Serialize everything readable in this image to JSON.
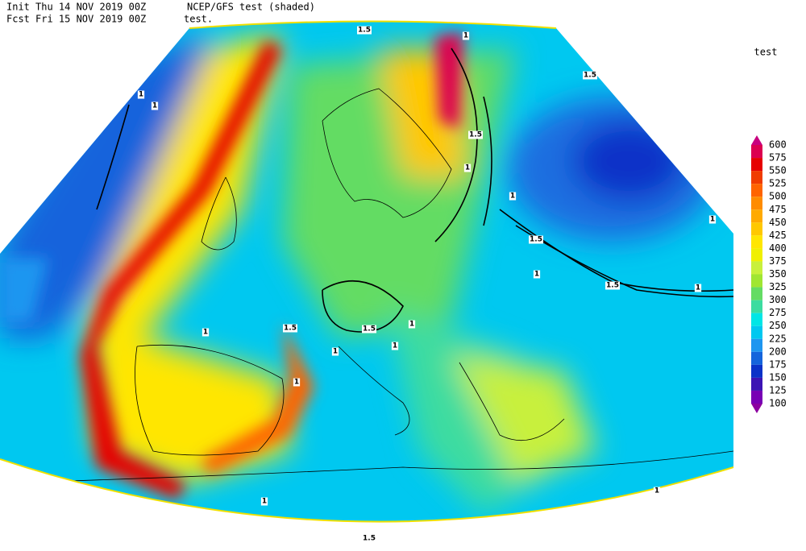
{
  "header": {
    "init_label": "Init",
    "init_date": "Thu 14 NOV 2019 00Z",
    "model": "NCEP/GFS test (shaded)",
    "fcst_label": "Fcst",
    "fcst_date": "Fri 15 NOV 2019 00Z",
    "contour": "test."
  },
  "legend": {
    "title": "test",
    "levels": [
      600,
      575,
      550,
      525,
      500,
      475,
      450,
      425,
      400,
      375,
      350,
      325,
      300,
      275,
      250,
      225,
      200,
      175,
      150,
      125,
      100
    ],
    "colors": [
      "#c8007f",
      "#dc0050",
      "#e60000",
      "#f03c00",
      "#ff6400",
      "#ff8c00",
      "#ffaa00",
      "#ffc800",
      "#ffe600",
      "#f0f000",
      "#c8f03c",
      "#a0e632",
      "#64dc64",
      "#3cdca0",
      "#00e6e6",
      "#00c8f0",
      "#1e96f0",
      "#1464dc",
      "#0a32c8",
      "#3c14b4",
      "#7800b4",
      "#8c00a0"
    ]
  },
  "contour_labels": [
    "1.5",
    "1",
    "1",
    "1",
    "1.5",
    "1.5",
    "1",
    "1",
    "1",
    "1.5",
    "1",
    "1.5",
    "1",
    "1",
    "1.5",
    "1.5",
    "1",
    "1",
    "1",
    "1",
    "1",
    "1",
    "1.5"
  ]
}
